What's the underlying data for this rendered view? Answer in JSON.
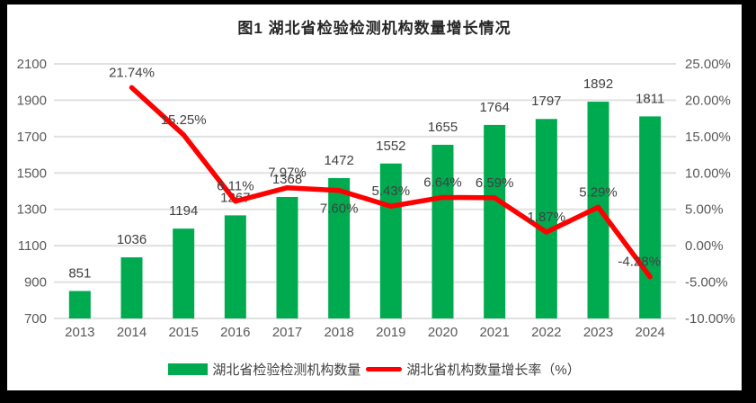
{
  "title": "图1 湖北省检验检测机构数量增长情况",
  "colors": {
    "bar_green": "#00AB50",
    "line_red": "#FF0000",
    "gridline": "#E0E0E0",
    "axis_text": "#595959",
    "data_label_text": "#404040",
    "frame_black": "#000000",
    "background": "#FFFFFF"
  },
  "legend": {
    "items": [
      {
        "swatch": "bar",
        "label": "湖北省检验检测机构数量"
      },
      {
        "swatch": "line",
        "label": "湖北省机构数量增长率（%）"
      }
    ]
  },
  "chart_data": {
    "type": "bar+line combo",
    "title": "图1 湖北省检验检测机构数量增长情况",
    "categories": [
      "2013",
      "2014",
      "2015",
      "2016",
      "2017",
      "2018",
      "2019",
      "2020",
      "2021",
      "2022",
      "2023",
      "2024"
    ],
    "series": [
      {
        "name": "湖北省检验检测机构数量",
        "type": "bar",
        "axis": "left",
        "color": "#00AB50",
        "values": [
          851,
          1036,
          1194,
          1267,
          1368,
          1472,
          1552,
          1655,
          1764,
          1797,
          1892,
          1811
        ],
        "data_labels": [
          "851",
          "1036",
          "1194",
          "1267",
          "1368",
          "1472",
          "1552",
          "1655",
          "1764",
          "1797",
          "1892",
          "1811"
        ]
      },
      {
        "name": "湖北省机构数量增长率（%）",
        "type": "line",
        "axis": "right",
        "color": "#FF0000",
        "values": [
          null,
          21.74,
          15.25,
          6.11,
          7.97,
          7.6,
          5.43,
          6.64,
          6.59,
          1.87,
          5.29,
          -4.28
        ],
        "data_labels": [
          null,
          "21.74%",
          "15.25%",
          "6.11%",
          "7.97%",
          "7.60%",
          "5.43%",
          "6.64%",
          "6.59%",
          "1.87%",
          "5.29%",
          "-4.28%"
        ]
      }
    ],
    "left_axis": {
      "min": 700,
      "max": 2100,
      "step": 200,
      "ticks": [
        "2100",
        "1900",
        "1700",
        "1500",
        "1300",
        "1100",
        "900",
        "700"
      ]
    },
    "right_axis": {
      "min": -10,
      "max": 25,
      "step": 5,
      "ticks": [
        "25.00%",
        "20.00%",
        "15.00%",
        "10.00%",
        "5.00%",
        "0.00%",
        "-5.00%",
        "-10.00%"
      ]
    },
    "grid": true,
    "legend_position": "bottom"
  }
}
